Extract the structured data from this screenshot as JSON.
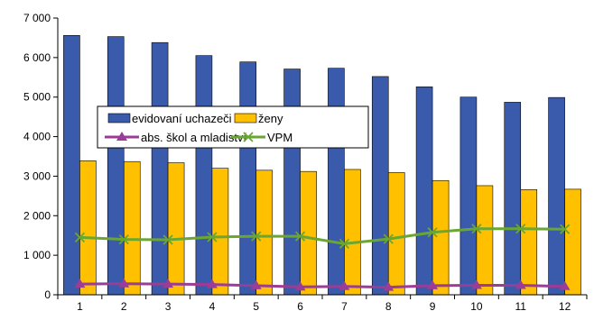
{
  "chart_data": {
    "type": "bar",
    "categories": [
      "1",
      "2",
      "3",
      "4",
      "5",
      "6",
      "7",
      "8",
      "9",
      "10",
      "11",
      "12"
    ],
    "ylim": [
      0,
      7000
    ],
    "yticks": [
      0,
      1000,
      2000,
      3000,
      4000,
      5000,
      6000,
      7000
    ],
    "ytick_labels": [
      "0",
      "1 000",
      "2 000",
      "3 000",
      "4 000",
      "5 000",
      "6 000",
      "7 000"
    ],
    "grid": false,
    "legend_position": "center-left",
    "series": [
      {
        "name": "evidovaní uchazeči",
        "kind": "bar",
        "color": "#3a5bab",
        "values": [
          6560,
          6530,
          6380,
          6050,
          5890,
          5710,
          5730,
          5520,
          5260,
          5000,
          4870,
          4990
        ]
      },
      {
        "name": "ženy",
        "kind": "bar",
        "color": "#ffc000",
        "values": [
          3390,
          3370,
          3340,
          3200,
          3150,
          3120,
          3170,
          3090,
          2890,
          2760,
          2660,
          2670
        ]
      },
      {
        "name": "abs. škol a mladiství",
        "kind": "line",
        "marker": "triangle",
        "color": "#9b3c97",
        "values": [
          270,
          280,
          270,
          260,
          230,
          200,
          210,
          190,
          230,
          240,
          240,
          210
        ]
      },
      {
        "name": "VPM",
        "kind": "line",
        "marker": "x",
        "color": "#6aa632",
        "values": [
          1450,
          1400,
          1390,
          1460,
          1480,
          1480,
          1290,
          1410,
          1580,
          1670,
          1670,
          1660
        ]
      }
    ]
  }
}
